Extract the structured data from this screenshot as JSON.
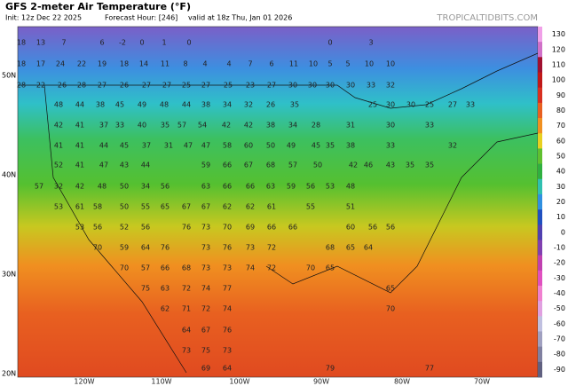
{
  "header": {
    "title": "GFS 2-meter Air Temperature (°F)",
    "init": "Init: 12z Dec 22 2025",
    "forecast_hour": "Forecast Hour: [246]",
    "valid": "valid at 18z Thu, Jan 01 2026",
    "site": "TROPICALTIDBITS.COM"
  },
  "map": {
    "lat_labels": [
      "50N",
      "40N",
      "30N",
      "20N"
    ],
    "lon_labels": [
      "120W",
      "110W",
      "100W",
      "90W",
      "80W",
      "70W"
    ],
    "temperatures": [
      [
        18,
        13,
        7,
        6,
        -2,
        0,
        1,
        0,
        0,
        3
      ],
      [
        18,
        17,
        24,
        22,
        19,
        18,
        14,
        11,
        8,
        4,
        4,
        7,
        6,
        11,
        10,
        5,
        5,
        10,
        10
      ],
      [
        28,
        22,
        26,
        28,
        27,
        26,
        27,
        27,
        25,
        27,
        25,
        23,
        27,
        30,
        30,
        30,
        30,
        33,
        32
      ],
      [
        48,
        44,
        38,
        45,
        49,
        48,
        44,
        38,
        34,
        32,
        26,
        35,
        25,
        30,
        30,
        25,
        27,
        33
      ],
      [
        42,
        41,
        37,
        33,
        40,
        35,
        57,
        54,
        42,
        42,
        38,
        34,
        28,
        31,
        30,
        33
      ],
      [
        41,
        41,
        44,
        45,
        37,
        31,
        47,
        47,
        58,
        60,
        50,
        49,
        45,
        35,
        38,
        33,
        32
      ],
      [
        52,
        41,
        47,
        43,
        44,
        59,
        66,
        67,
        68,
        57,
        50,
        42,
        46,
        43,
        35,
        35
      ],
      [
        57,
        32,
        42,
        48,
        50,
        34,
        56,
        63,
        66,
        66,
        63,
        59,
        56,
        53,
        48
      ],
      [
        53,
        61,
        58,
        50,
        55,
        65,
        67,
        67,
        62,
        62,
        61,
        55,
        51
      ],
      [
        53,
        56,
        52,
        56,
        76,
        73,
        70,
        69,
        66,
        66,
        60,
        56,
        56
      ],
      [
        70,
        59,
        64,
        76,
        73,
        76,
        73,
        72,
        68,
        65,
        64
      ],
      [
        70,
        57,
        66,
        68,
        73,
        73,
        74,
        72,
        70,
        65
      ],
      [
        75,
        63,
        72,
        74,
        77,
        65
      ],
      [
        62,
        71,
        72,
        74,
        70
      ],
      [
        64,
        67,
        76
      ],
      [
        73,
        75,
        73
      ],
      [
        69,
        64,
        79,
        77
      ]
    ]
  },
  "colorbar": {
    "ticks": [
      130,
      120,
      110,
      100,
      90,
      80,
      70,
      60,
      50,
      40,
      30,
      20,
      10,
      0,
      -10,
      -20,
      -30,
      -40,
      -50,
      -60,
      -70,
      -80,
      -90
    ]
  }
}
